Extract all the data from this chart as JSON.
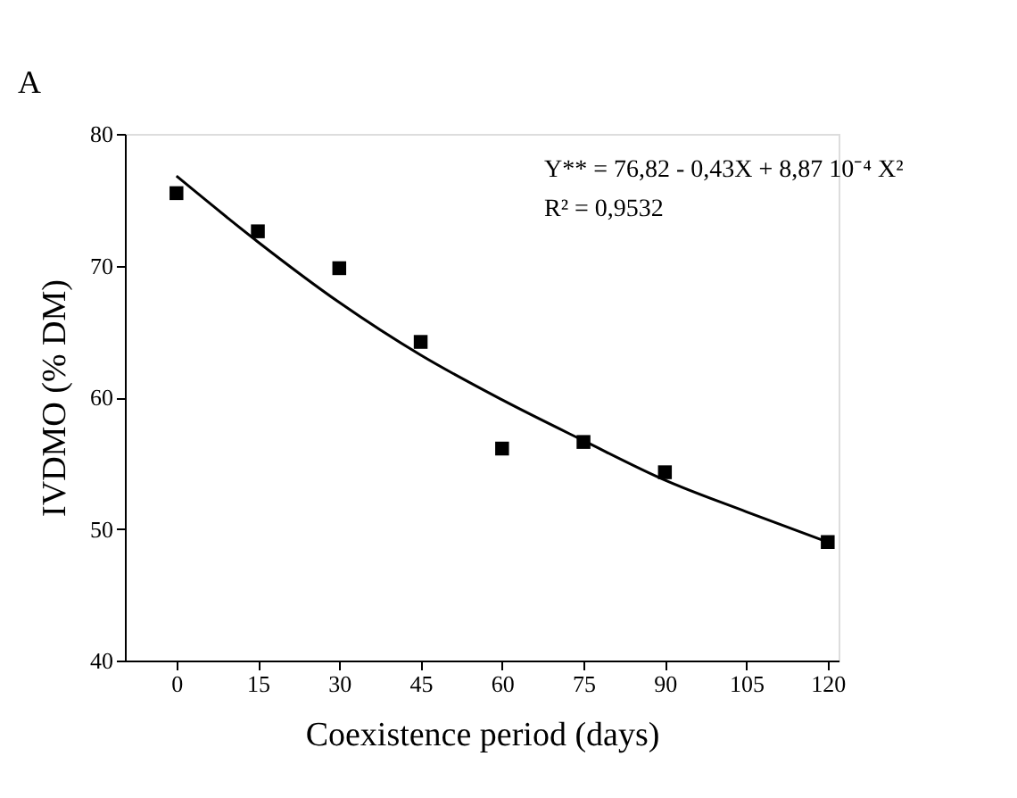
{
  "chart_data": {
    "type": "scatter",
    "xlabel": "Coexistence period (days)",
    "ylabel": "IVDMO (% DM)",
    "x": [
      0,
      15,
      30,
      45,
      60,
      75,
      90,
      120
    ],
    "series": [
      {
        "color": "#000000",
        "marker": "square",
        "values": [
          75.5,
          72.6,
          69.8,
          64.2,
          56.1,
          56.6,
          54.3,
          49.0
        ]
      },
      {
        "type": "line",
        "color": "#000000",
        "line_style": "solid",
        "marker": "none",
        "x": [
          0,
          15,
          30,
          45,
          60,
          75,
          90,
          105,
          120
        ],
        "values": [
          76.8,
          71.8,
          67.2,
          63.2,
          59.8,
          56.7,
          53.7,
          51.3,
          49.0
        ]
      }
    ],
    "xlim": [
      -9.5,
      122
    ],
    "xticks": [
      0,
      15,
      30,
      45,
      60,
      75,
      90,
      105,
      120
    ],
    "ylim": [
      40,
      80
    ],
    "yticks": [
      40,
      50,
      60,
      70,
      80
    ],
    "grid": false,
    "annotations": [
      "A",
      "Y** = 76,82 - 0,43X + 8,87 10⁻⁴ X²",
      "R² = 0,9532"
    ]
  }
}
